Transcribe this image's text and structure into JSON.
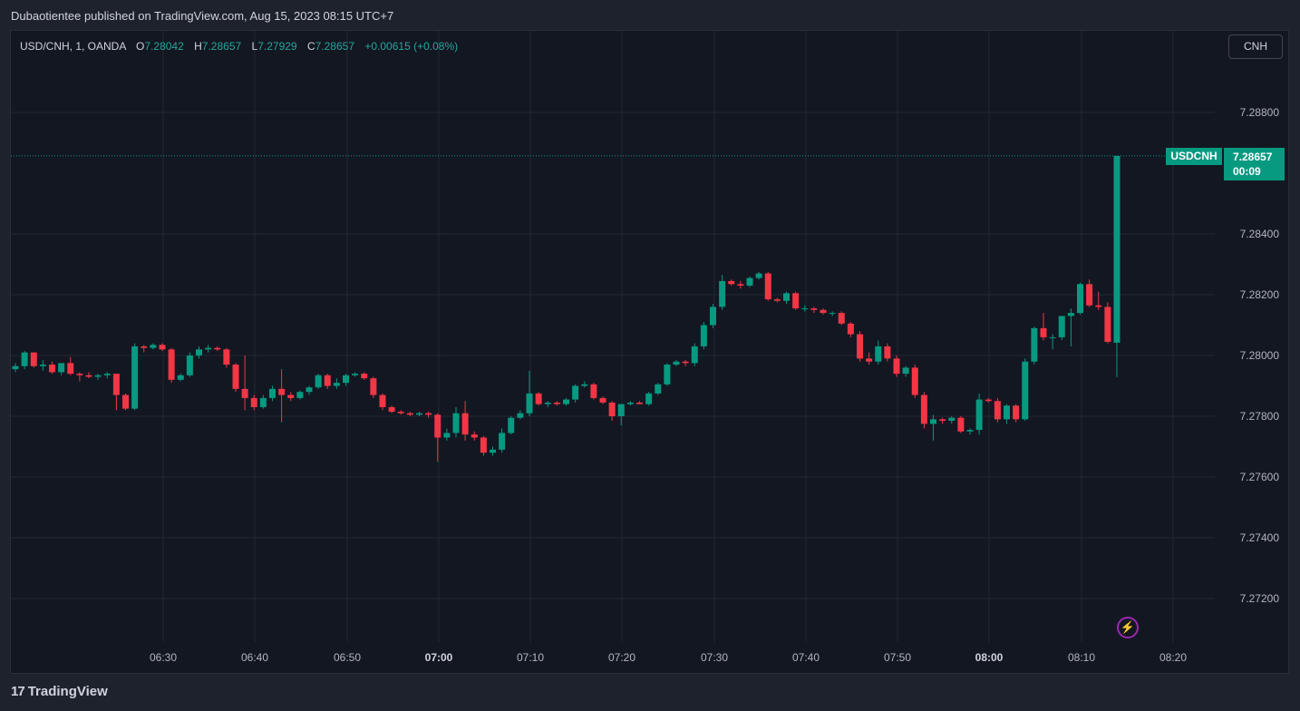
{
  "header": {
    "published": "Dubaotientee published on TradingView.com, Aug 15, 2023 08:15 UTC+7"
  },
  "legend": {
    "symbol": "USD/CNH, 1, OANDA",
    "o_label": "O",
    "o": "7.28042",
    "h_label": "H",
    "h": "7.28657",
    "l_label": "L",
    "l": "7.27929",
    "c_label": "C",
    "c": "7.28657",
    "change": "+0.00615 (+0.08%)"
  },
  "currency_button": "CNH",
  "price_tag": {
    "symbol": "USDCNH",
    "price": "7.28657",
    "countdown": "00:09"
  },
  "footer": {
    "logo_mark": "17",
    "logo_text": "TradingView"
  },
  "colors": {
    "up": "#089981",
    "down": "#f23645",
    "background": "#131722",
    "grid": "#2a2e39"
  },
  "icons": {
    "alert": "lightning-icon"
  },
  "chart_data": {
    "type": "candlestick",
    "symbol": "USD/CNH",
    "timeframe": "1",
    "source": "OANDA",
    "ylim": [
      7.2708,
      7.2905
    ],
    "y_ticks": [
      "7.28800",
      "7.28400",
      "7.28200",
      "7.28000",
      "7.27800",
      "7.27600",
      "7.27400",
      "7.27200"
    ],
    "x_ticks": [
      {
        "label": "06:30",
        "bold": false
      },
      {
        "label": "06:40",
        "bold": false
      },
      {
        "label": "06:50",
        "bold": false
      },
      {
        "label": "07:00",
        "bold": true
      },
      {
        "label": "07:10",
        "bold": false
      },
      {
        "label": "07:20",
        "bold": false
      },
      {
        "label": "07:30",
        "bold": false
      },
      {
        "label": "07:40",
        "bold": false
      },
      {
        "label": "07:50",
        "bold": false
      },
      {
        "label": "08:00",
        "bold": true
      },
      {
        "label": "08:10",
        "bold": false
      },
      {
        "label": "08:20",
        "bold": false
      }
    ],
    "start_time": "06:14",
    "last_price": 7.28657,
    "ohlc": [
      [
        7.27955,
        7.27975,
        7.27945,
        7.27965
      ],
      [
        7.27965,
        7.28015,
        7.27955,
        7.2801
      ],
      [
        7.2801,
        7.2801,
        7.2796,
        7.27965
      ],
      [
        7.27965,
        7.27985,
        7.2795,
        7.2797
      ],
      [
        7.2797,
        7.2798,
        7.2794,
        7.27945
      ],
      [
        7.27945,
        7.27975,
        7.27935,
        7.27975
      ],
      [
        7.27975,
        7.27995,
        7.27935,
        7.2794
      ],
      [
        7.2794,
        7.27945,
        7.27915,
        7.27935
      ],
      [
        7.27935,
        7.27945,
        7.27925,
        7.2793
      ],
      [
        7.2793,
        7.2794,
        7.2792,
        7.27935
      ],
      [
        7.27935,
        7.27945,
        7.27925,
        7.2794
      ],
      [
        7.2794,
        7.2794,
        7.2782,
        7.2787
      ],
      [
        7.2787,
        7.27875,
        7.2782,
        7.27825
      ],
      [
        7.27825,
        7.2804,
        7.2782,
        7.2803
      ],
      [
        7.2803,
        7.28035,
        7.2801,
        7.28025
      ],
      [
        7.28025,
        7.2804,
        7.2802,
        7.28035
      ],
      [
        7.28035,
        7.2804,
        7.28015,
        7.2802
      ],
      [
        7.2802,
        7.28025,
        7.2791,
        7.2792
      ],
      [
        7.2792,
        7.2794,
        7.27915,
        7.27935
      ],
      [
        7.27935,
        7.2801,
        7.2793,
        7.28
      ],
      [
        7.28,
        7.2803,
        7.2799,
        7.2802
      ],
      [
        7.2802,
        7.28035,
        7.2801,
        7.28025
      ],
      [
        7.28025,
        7.2803,
        7.28015,
        7.2802
      ],
      [
        7.2802,
        7.28025,
        7.2796,
        7.2797
      ],
      [
        7.2797,
        7.27975,
        7.2788,
        7.2789
      ],
      [
        7.2789,
        7.28,
        7.2782,
        7.2786
      ],
      [
        7.2786,
        7.2787,
        7.2782,
        7.2783
      ],
      [
        7.2783,
        7.2787,
        7.27825,
        7.2786
      ],
      [
        7.2786,
        7.279,
        7.2785,
        7.2789
      ],
      [
        7.2789,
        7.27955,
        7.2778,
        7.2787
      ],
      [
        7.2787,
        7.2788,
        7.2785,
        7.2786
      ],
      [
        7.2786,
        7.27885,
        7.27855,
        7.2788
      ],
      [
        7.2788,
        7.279,
        7.2787,
        7.27895
      ],
      [
        7.27895,
        7.2794,
        7.2789,
        7.27935
      ],
      [
        7.27935,
        7.2794,
        7.2789,
        7.279
      ],
      [
        7.279,
        7.27925,
        7.2789,
        7.2791
      ],
      [
        7.2791,
        7.2794,
        7.279,
        7.27935
      ],
      [
        7.27935,
        7.27945,
        7.2793,
        7.2794
      ],
      [
        7.2794,
        7.27945,
        7.2792,
        7.27925
      ],
      [
        7.27925,
        7.2793,
        7.2786,
        7.2787
      ],
      [
        7.2787,
        7.27875,
        7.2782,
        7.2783
      ],
      [
        7.2783,
        7.27835,
        7.2781,
        7.27815
      ],
      [
        7.27815,
        7.2782,
        7.27805,
        7.2781
      ],
      [
        7.2781,
        7.27815,
        7.278,
        7.27805
      ],
      [
        7.27805,
        7.27815,
        7.278,
        7.2781
      ],
      [
        7.2781,
        7.27815,
        7.27795,
        7.27805
      ],
      [
        7.27805,
        7.2781,
        7.2765,
        7.2773
      ],
      [
        7.2773,
        7.2776,
        7.2772,
        7.27745
      ],
      [
        7.27745,
        7.2783,
        7.2773,
        7.2781
      ],
      [
        7.2781,
        7.2785,
        7.2772,
        7.2774
      ],
      [
        7.2774,
        7.2775,
        7.2772,
        7.2773
      ],
      [
        7.2773,
        7.27735,
        7.2767,
        7.2768
      ],
      [
        7.2768,
        7.277,
        7.2767,
        7.2769
      ],
      [
        7.2769,
        7.2776,
        7.2768,
        7.27745
      ],
      [
        7.27745,
        7.278,
        7.2774,
        7.27795
      ],
      [
        7.27795,
        7.2782,
        7.2779,
        7.2781
      ],
      [
        7.2781,
        7.2795,
        7.278,
        7.27875
      ],
      [
        7.27875,
        7.2788,
        7.27835,
        7.2784
      ],
      [
        7.2784,
        7.2785,
        7.2783,
        7.27845
      ],
      [
        7.27845,
        7.2785,
        7.27835,
        7.2784
      ],
      [
        7.2784,
        7.2786,
        7.27835,
        7.27855
      ],
      [
        7.27855,
        7.27905,
        7.27845,
        7.279
      ],
      [
        7.279,
        7.27915,
        7.27895,
        7.27905
      ],
      [
        7.27905,
        7.2791,
        7.27855,
        7.2786
      ],
      [
        7.2786,
        7.27865,
        7.2784,
        7.27845
      ],
      [
        7.27845,
        7.2785,
        7.27785,
        7.278
      ],
      [
        7.278,
        7.2784,
        7.2777,
        7.2784
      ],
      [
        7.2784,
        7.2785,
        7.27835,
        7.27845
      ],
      [
        7.27845,
        7.2785,
        7.2784,
        7.2784
      ],
      [
        7.2784,
        7.2788,
        7.27835,
        7.27875
      ],
      [
        7.27875,
        7.2791,
        7.2787,
        7.27905
      ],
      [
        7.27905,
        7.27975,
        7.279,
        7.2797
      ],
      [
        7.2797,
        7.27985,
        7.27965,
        7.2798
      ],
      [
        7.2798,
        7.27985,
        7.27965,
        7.27975
      ],
      [
        7.27975,
        7.2804,
        7.27965,
        7.2803
      ],
      [
        7.2803,
        7.2811,
        7.2802,
        7.281
      ],
      [
        7.281,
        7.2817,
        7.2809,
        7.2816
      ],
      [
        7.2816,
        7.28265,
        7.2815,
        7.28245
      ],
      [
        7.28245,
        7.2825,
        7.2823,
        7.28235
      ],
      [
        7.28235,
        7.28245,
        7.2822,
        7.2823
      ],
      [
        7.2823,
        7.2826,
        7.28225,
        7.28255
      ],
      [
        7.28255,
        7.28275,
        7.2825,
        7.2827
      ],
      [
        7.2827,
        7.28275,
        7.2818,
        7.28185
      ],
      [
        7.28185,
        7.2819,
        7.28175,
        7.2818
      ],
      [
        7.2818,
        7.2821,
        7.2817,
        7.28205
      ],
      [
        7.28205,
        7.2821,
        7.2815,
        7.28155
      ],
      [
        7.28155,
        7.28165,
        7.28145,
        7.28155
      ],
      [
        7.28155,
        7.2816,
        7.2814,
        7.2815
      ],
      [
        7.2815,
        7.28155,
        7.28135,
        7.2814
      ],
      [
        7.2814,
        7.28145,
        7.2813,
        7.2814
      ],
      [
        7.2814,
        7.28145,
        7.281,
        7.28105
      ],
      [
        7.28105,
        7.2811,
        7.2806,
        7.2807
      ],
      [
        7.2807,
        7.2808,
        7.2798,
        7.2799
      ],
      [
        7.2799,
        7.2801,
        7.2797,
        7.2798
      ],
      [
        7.2798,
        7.2805,
        7.2797,
        7.2803
      ],
      [
        7.2803,
        7.2804,
        7.2798,
        7.2799
      ],
      [
        7.2799,
        7.28,
        7.2793,
        7.2794
      ],
      [
        7.2794,
        7.27965,
        7.2793,
        7.2796
      ],
      [
        7.2796,
        7.2797,
        7.2786,
        7.2787
      ],
      [
        7.2787,
        7.2788,
        7.2776,
        7.27775
      ],
      [
        7.27775,
        7.27805,
        7.2772,
        7.2779
      ],
      [
        7.2779,
        7.27795,
        7.27775,
        7.27785
      ],
      [
        7.27785,
        7.278,
        7.27775,
        7.27795
      ],
      [
        7.27795,
        7.278,
        7.27745,
        7.2775
      ],
      [
        7.2775,
        7.2776,
        7.2774,
        7.27755
      ],
      [
        7.27755,
        7.27875,
        7.2774,
        7.27855
      ],
      [
        7.27855,
        7.2786,
        7.27845,
        7.2785
      ],
      [
        7.2785,
        7.2786,
        7.2778,
        7.2779
      ],
      [
        7.2779,
        7.2784,
        7.27775,
        7.27835
      ],
      [
        7.27835,
        7.2784,
        7.2778,
        7.2779
      ],
      [
        7.2779,
        7.2799,
        7.27785,
        7.2798
      ],
      [
        7.2798,
        7.28095,
        7.2797,
        7.2809
      ],
      [
        7.2809,
        7.2814,
        7.2805,
        7.2806
      ],
      [
        7.2806,
        7.2807,
        7.2802,
        7.2806
      ],
      [
        7.2806,
        7.2813,
        7.2805,
        7.2813
      ],
      [
        7.2813,
        7.28155,
        7.2803,
        7.2814
      ],
      [
        7.2814,
        7.2824,
        7.28135,
        7.28235
      ],
      [
        7.28235,
        7.2825,
        7.2816,
        7.28165
      ],
      [
        7.28165,
        7.2821,
        7.2815,
        7.2816
      ],
      [
        7.2816,
        7.28175,
        7.2804,
        7.28045
      ],
      [
        7.28042,
        7.28657,
        7.27929,
        7.28657
      ]
    ]
  }
}
